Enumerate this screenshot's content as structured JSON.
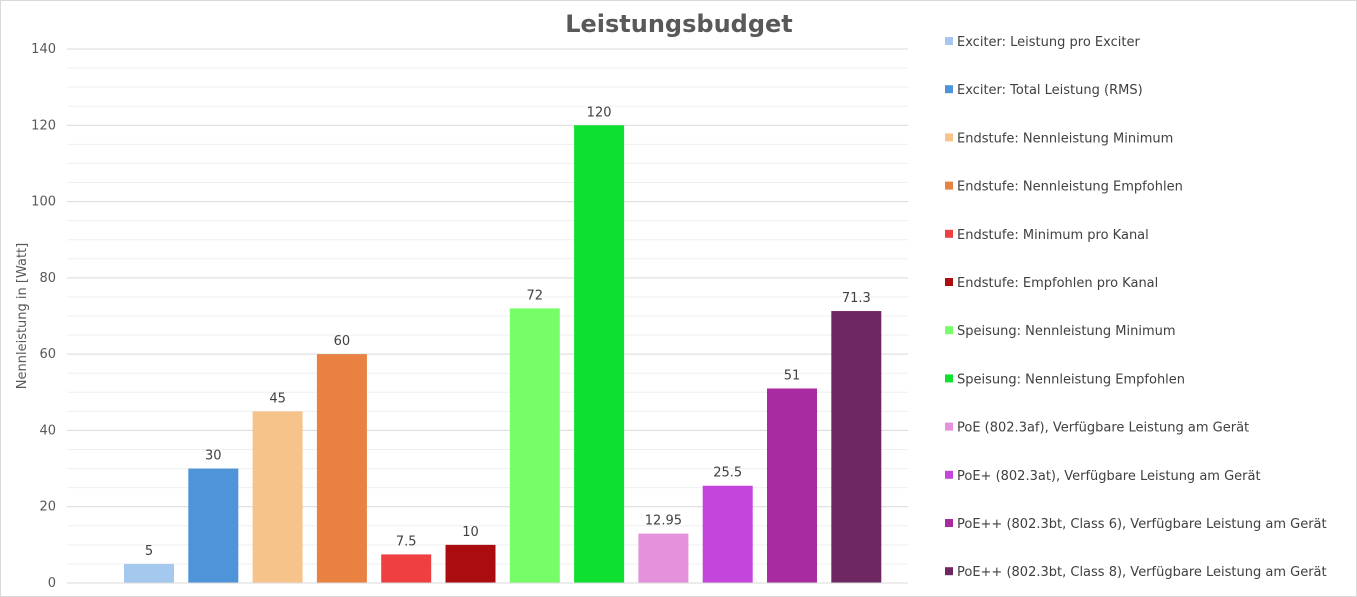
{
  "chart_data": {
    "type": "bar",
    "title": "Leistungsbudget",
    "xlabel": "",
    "ylabel": "Nennleistung in [Watt]",
    "ylim": [
      0,
      140
    ],
    "yticks": [
      0,
      20,
      40,
      60,
      80,
      100,
      120,
      140
    ],
    "grid": true,
    "legend_position": "right",
    "series": [
      {
        "name": "Exciter: Leistung pro Exciter",
        "value": 5,
        "label": "5",
        "color": "#a4c8ee"
      },
      {
        "name": "Exciter: Total Leistung (RMS)",
        "value": 30,
        "label": "30",
        "color": "#4f94d9"
      },
      {
        "name": "Endstufe: Nennleistung Minimum",
        "value": 45,
        "label": "45",
        "color": "#f6c48b"
      },
      {
        "name": "Endstufe: Nennleistung Empfohlen",
        "value": 60,
        "label": "60",
        "color": "#e88141"
      },
      {
        "name": "Endstufe: Minimum pro Kanal",
        "value": 7.5,
        "label": "7.5",
        "color": "#ee4040"
      },
      {
        "name": "Endstufe: Empfohlen pro Kanal",
        "value": 10,
        "label": "10",
        "color": "#ab0c10"
      },
      {
        "name": "Speisung: Nennleistung Minimum",
        "value": 72,
        "label": "72",
        "color": "#77fd67"
      },
      {
        "name": "Speisung: Nennleistung Empfohlen",
        "value": 120,
        "label": "120",
        "color": "#0de02f"
      },
      {
        "name": "PoE (802.3af), Verfügbare Leistung am Gerät",
        "value": 12.95,
        "label": "12.95",
        "color": "#e591dc"
      },
      {
        "name": "PoE+ (802.3at), Verfügbare Leistung am Gerät",
        "value": 25.5,
        "label": "25.5",
        "color": "#c445dc"
      },
      {
        "name": "PoE++ (802.3bt, Class 6), Verfügbare Leistung am Gerät",
        "value": 51,
        "label": "51",
        "color": "#a82ba0"
      },
      {
        "name": "PoE++ (802.3bt, Class 8), Verfügbare Leistung am Gerät",
        "value": 71.3,
        "label": "71.3",
        "color": "#6e2761"
      }
    ]
  }
}
